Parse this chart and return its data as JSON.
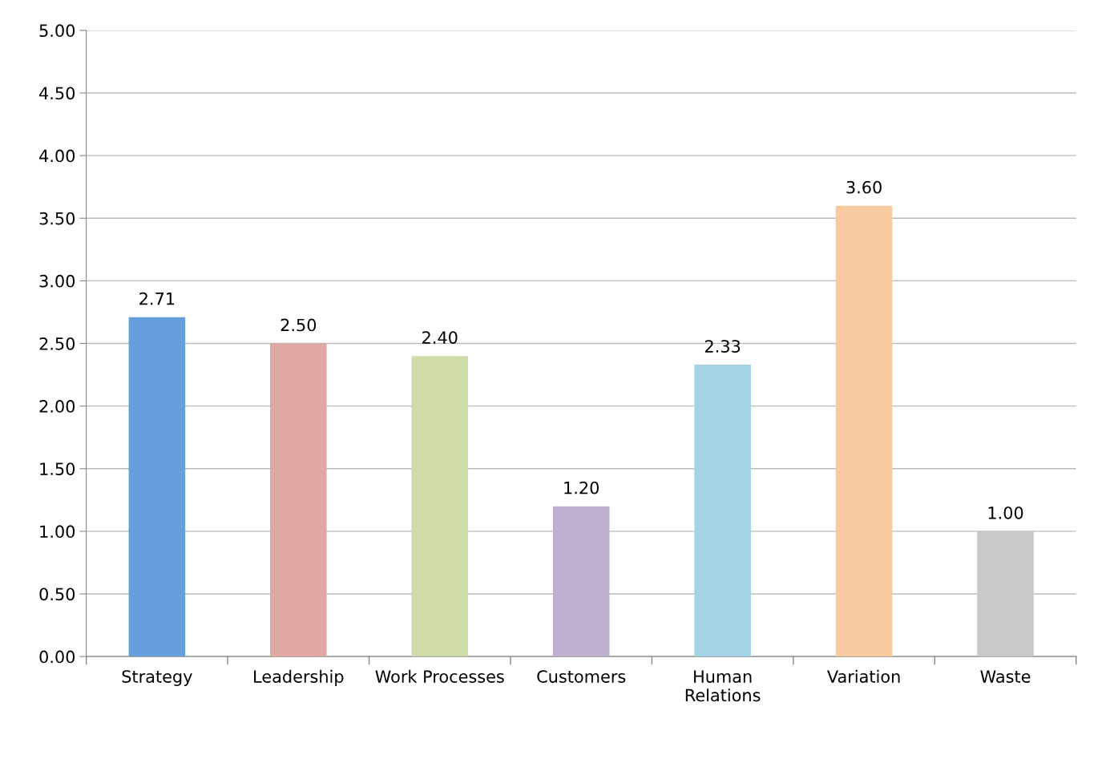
{
  "chart_data": {
    "type": "bar",
    "categories": [
      "Strategy",
      "Leadership",
      "Work Processes",
      "Customers",
      "Human\nRelations",
      "Variation",
      "Waste"
    ],
    "values": [
      2.71,
      2.5,
      2.4,
      1.2,
      2.33,
      3.6,
      1.0
    ],
    "colors": [
      "#65a0dc",
      "#e0a8a5",
      "#cddca9",
      "#bfb0d2",
      "#a3d4e3",
      "#f9c9a0",
      "#c9c9c9"
    ],
    "value_labels": [
      "2.71",
      "2.50",
      "2.40",
      "1.20",
      "2.33",
      "3.60",
      "1.00"
    ],
    "ylim": [
      0,
      5
    ],
    "yticks": [
      {
        "value": 0,
        "label": "0.00"
      },
      {
        "value": 0.5,
        "label": "0.50"
      },
      {
        "value": 1,
        "label": "1.00"
      },
      {
        "value": 1.5,
        "label": "1.50"
      },
      {
        "value": 2,
        "label": "2.00"
      },
      {
        "value": 2.5,
        "label": "2.50"
      },
      {
        "value": 3,
        "label": "3.00"
      },
      {
        "value": 3.5,
        "label": "3.50"
      },
      {
        "value": 4,
        "label": "4.00"
      },
      {
        "value": 4.5,
        "label": "4.50"
      },
      {
        "value": 5,
        "label": "5.00"
      }
    ],
    "grid": "y",
    "legend": false
  }
}
